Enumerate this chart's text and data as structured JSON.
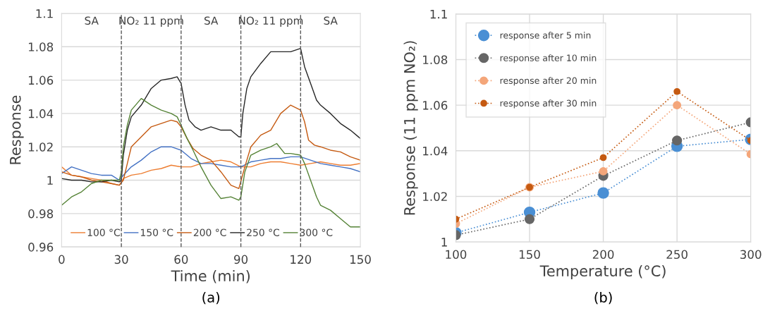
{
  "chart_data": [
    {
      "type": "line",
      "xlabel": "Time (min)",
      "ylabel": "Response",
      "xlim": [
        0,
        150
      ],
      "ylim": [
        0.96,
        1.1
      ],
      "xticks": [
        0,
        30,
        60,
        90,
        120,
        150
      ],
      "yticks": [
        0.96,
        0.98,
        1,
        1.02,
        1.04,
        1.06,
        1.08,
        1.1
      ],
      "grid": "y",
      "legend": "bottom",
      "line_style": "solid",
      "marker": "none",
      "ref_lines": [
        {
          "axis": "x",
          "value": 30,
          "color": "#595959",
          "line_style": "dashed"
        },
        {
          "axis": "x",
          "value": 60,
          "color": "#595959",
          "line_style": "dashed"
        },
        {
          "axis": "x",
          "value": 90,
          "color": "#595959",
          "line_style": "dashed"
        },
        {
          "axis": "x",
          "value": 120,
          "color": "#595959",
          "line_style": "dashed"
        }
      ],
      "annotations": [
        "SA",
        "NO₂ 11 ppm",
        "SA",
        "NO₂ 11 ppm",
        "SA",
        "(a)"
      ],
      "series": [
        {
          "name": "100 °C",
          "color": "#ed7d31",
          "x": [
            0,
            5,
            10,
            15,
            20,
            25,
            29,
            31,
            35,
            40,
            45,
            50,
            55,
            60,
            65,
            70,
            75,
            80,
            85,
            90,
            95,
            100,
            105,
            110,
            115,
            120,
            125,
            130,
            135,
            140,
            145,
            150
          ],
          "values": [
            1.008,
            1.003,
            1.002,
            1.001,
            1.0,
            0.998,
            0.997,
            1.001,
            1.003,
            1.004,
            1.006,
            1.007,
            1.009,
            1.008,
            1.008,
            1.01,
            1.011,
            1.012,
            1.011,
            1.008,
            1.008,
            1.01,
            1.011,
            1.011,
            1.01,
            1.009,
            1.01,
            1.011,
            1.01,
            1.009,
            1.009,
            1.01
          ]
        },
        {
          "name": "150 °C",
          "color": "#4472c4",
          "x": [
            0,
            5,
            10,
            15,
            20,
            25,
            29,
            31,
            35,
            40,
            45,
            50,
            55,
            60,
            65,
            70,
            75,
            80,
            85,
            90,
            95,
            100,
            105,
            110,
            115,
            120,
            125,
            130,
            135,
            140,
            145,
            150
          ],
          "values": [
            1.004,
            1.008,
            1.006,
            1.004,
            1.003,
            1.003,
            1.0,
            1.003,
            1.008,
            1.012,
            1.017,
            1.02,
            1.02,
            1.018,
            1.013,
            1.01,
            1.01,
            1.009,
            1.008,
            1.008,
            1.011,
            1.012,
            1.013,
            1.013,
            1.014,
            1.014,
            1.012,
            1.01,
            1.009,
            1.008,
            1.007,
            1.005
          ]
        },
        {
          "name": "200 °C",
          "color": "#c55a11",
          "x": [
            0,
            5,
            10,
            15,
            20,
            25,
            29,
            31,
            33,
            35,
            40,
            45,
            50,
            55,
            58,
            60,
            63,
            66,
            70,
            75,
            80,
            85,
            89,
            92,
            95,
            100,
            105,
            110,
            115,
            120,
            122,
            124,
            127,
            130,
            135,
            140,
            145,
            150
          ],
          "values": [
            1.005,
            1.003,
            1.002,
            1.0,
            0.999,
            0.998,
            0.997,
            1.0,
            1.01,
            1.02,
            1.026,
            1.032,
            1.034,
            1.036,
            1.035,
            1.032,
            1.025,
            1.019,
            1.015,
            1.012,
            1.005,
            0.997,
            0.995,
            1.008,
            1.02,
            1.027,
            1.03,
            1.04,
            1.045,
            1.042,
            1.035,
            1.024,
            1.021,
            1.02,
            1.018,
            1.017,
            1.014,
            1.012
          ]
        },
        {
          "name": "250 °C",
          "color": "#262626",
          "x": [
            0,
            5,
            10,
            15,
            20,
            25,
            29,
            30,
            31,
            33,
            35,
            40,
            45,
            50,
            55,
            58,
            60,
            62,
            64,
            67,
            70,
            75,
            80,
            85,
            89,
            90,
            91,
            93,
            95,
            100,
            105,
            110,
            115,
            120,
            122,
            125,
            128,
            130,
            135,
            140,
            145,
            150
          ],
          "values": [
            1.001,
            1.0,
            1.0,
            0.999,
            0.999,
            1.0,
            0.999,
            1.0,
            1.015,
            1.03,
            1.038,
            1.045,
            1.055,
            1.06,
            1.061,
            1.062,
            1.058,
            1.045,
            1.036,
            1.032,
            1.03,
            1.032,
            1.03,
            1.03,
            1.026,
            1.026,
            1.04,
            1.055,
            1.062,
            1.07,
            1.077,
            1.077,
            1.077,
            1.079,
            1.068,
            1.058,
            1.048,
            1.045,
            1.04,
            1.034,
            1.03,
            1.025
          ]
        },
        {
          "name": "300 °C",
          "color": "#548235",
          "x": [
            0,
            5,
            10,
            15,
            20,
            25,
            29,
            30,
            31,
            33,
            35,
            40,
            45,
            50,
            55,
            58,
            60,
            63,
            66,
            70,
            75,
            80,
            85,
            89,
            90,
            92,
            95,
            100,
            105,
            108,
            112,
            115,
            120,
            122,
            125,
            128,
            130,
            135,
            140,
            145,
            150
          ],
          "values": [
            0.985,
            0.99,
            0.993,
            0.998,
            1.0,
            1.0,
            1.0,
            1.005,
            1.02,
            1.033,
            1.042,
            1.049,
            1.045,
            1.042,
            1.04,
            1.038,
            1.033,
            1.025,
            1.018,
            1.008,
            0.997,
            0.989,
            0.99,
            0.988,
            0.99,
            1.005,
            1.015,
            1.018,
            1.02,
            1.022,
            1.016,
            1.016,
            1.015,
            1.01,
            1.0,
            0.99,
            0.985,
            0.982,
            0.977,
            0.972,
            0.972
          ]
        }
      ]
    },
    {
      "type": "line",
      "xlabel": "Temperature (°C)",
      "ylabel": "Response (11 ppm NO₂)",
      "x": [
        100,
        150,
        200,
        250,
        300
      ],
      "xlim": [
        100,
        300
      ],
      "ylim": [
        1,
        1.1
      ],
      "xticks": [
        100,
        150,
        200,
        250,
        300
      ],
      "yticks": [
        1,
        1.02,
        1.04,
        1.06,
        1.08,
        1.1
      ],
      "grid": true,
      "legend": "top left",
      "line_style": "dotted",
      "marker": "circle",
      "annotations": [
        "(b)"
      ],
      "series": [
        {
          "name": "response after 5 min",
          "color": "#4a8fd4",
          "values": [
            1.004,
            1.013,
            1.0215,
            1.042,
            1.045
          ]
        },
        {
          "name": "response after 10 min",
          "color": "#666666",
          "values": [
            1.003,
            1.01,
            1.029,
            1.0445,
            1.0525
          ]
        },
        {
          "name": "response after 20 min",
          "color": "#f4a67a",
          "values": [
            1.008,
            1.024,
            1.031,
            1.06,
            1.0385
          ]
        },
        {
          "name": "response after 30 min",
          "color": "#c55a11",
          "values": [
            1.01,
            1.024,
            1.037,
            1.066,
            1.0445
          ]
        }
      ]
    }
  ]
}
